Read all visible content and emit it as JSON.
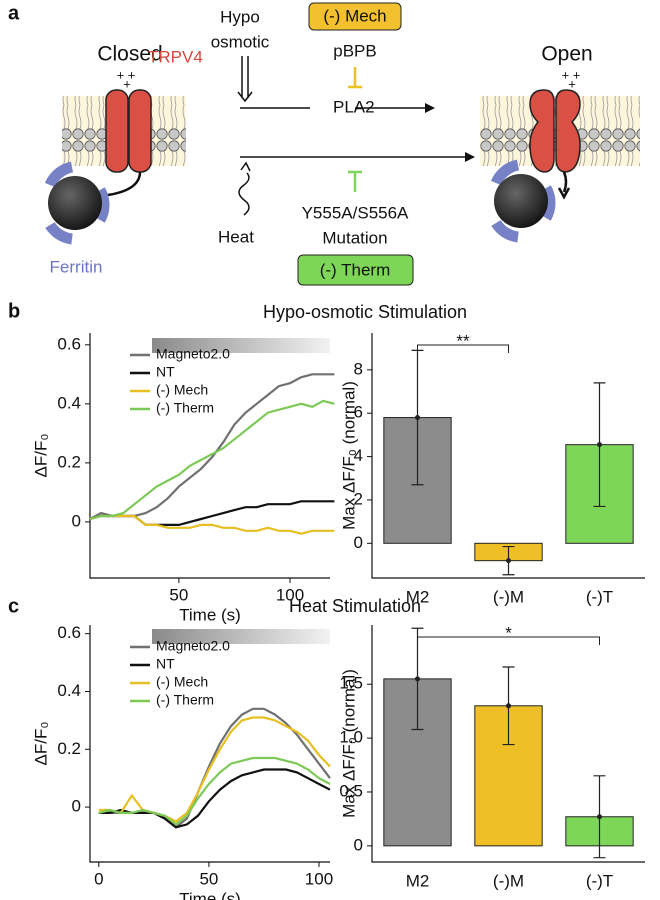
{
  "panel_labels": [
    "a",
    "b",
    "c"
  ],
  "diagram": {
    "closed": "Closed",
    "open": "Open",
    "trpv4": "TRPV4",
    "charge_pair": "+ +",
    "charge_single": "+",
    "ferritin": "Ferritin",
    "hypo_1": "Hypo",
    "hypo_2": "osmotic",
    "mech_box": "(-) Mech",
    "pbpb": "pBPB",
    "pla2": "PLA2",
    "heat": "Heat",
    "mutation_1": "Y555A/S556A",
    "mutation_2": "Mutation",
    "therm_box": "(-) Therm",
    "open_charge_pair": "+ +",
    "open_charge_single": "+"
  },
  "chart_data": [
    {
      "type": "line",
      "title": "Hypo-osmotic Stimulation",
      "x_label": "Time (s)",
      "y_label": "ΔF/F₀",
      "legend": "upper left",
      "x": [
        10,
        15,
        20,
        25,
        30,
        35,
        40,
        45,
        50,
        55,
        60,
        65,
        70,
        75,
        80,
        85,
        90,
        95,
        100,
        105,
        110,
        115,
        120
      ],
      "xlim": [
        10,
        118
      ],
      "xticks": [
        50,
        100
      ],
      "ylim": [
        -0.19,
        0.64
      ],
      "yticks": [
        0,
        0.2,
        0.4,
        0.6
      ],
      "series": [
        {
          "name": "Magneto2.0",
          "color": "#707070",
          "values": [
            0.01,
            0.03,
            0.02,
            0.02,
            0.02,
            0.03,
            0.05,
            0.08,
            0.12,
            0.15,
            0.18,
            0.22,
            0.27,
            0.33,
            0.37,
            0.4,
            0.43,
            0.46,
            0.47,
            0.49,
            0.5,
            0.5,
            0.5
          ]
        },
        {
          "name": "NT",
          "color": "#111111",
          "values": [
            0.01,
            0.02,
            0.02,
            0.02,
            0.02,
            -0.01,
            -0.01,
            -0.01,
            -0.01,
            0,
            0.01,
            0.02,
            0.03,
            0.04,
            0.05,
            0.05,
            0.06,
            0.06,
            0.06,
            0.07,
            0.07,
            0.07,
            0.07
          ]
        },
        {
          "name": "(-) Mech",
          "color": "#e8bf22",
          "values": [
            0.01,
            0.02,
            0.02,
            0.02,
            0.02,
            -0.01,
            -0.01,
            -0.02,
            -0.02,
            -0.02,
            -0.01,
            -0.01,
            -0.02,
            -0.02,
            -0.03,
            -0.03,
            -0.02,
            -0.03,
            -0.03,
            -0.04,
            -0.03,
            -0.03,
            -0.03
          ]
        },
        {
          "name": "(-) Therm",
          "color": "#7cc957",
          "values": [
            0.01,
            0.02,
            0.02,
            0.03,
            0.06,
            0.09,
            0.12,
            0.14,
            0.16,
            0.19,
            0.21,
            0.23,
            0.25,
            0.28,
            0.31,
            0.34,
            0.37,
            0.38,
            0.39,
            0.4,
            0.39,
            0.41,
            0.4
          ]
        }
      ]
    },
    {
      "type": "bar",
      "y_label": "Max ΔF/F₀ (normal)",
      "categories": [
        "M2",
        "(-)M",
        "(-)T"
      ],
      "values": [
        5.8,
        -0.8,
        4.55
      ],
      "errors": [
        3.1,
        0.65,
        2.85
      ],
      "colors": [
        "#8c8c8c",
        "#efc025",
        "#7ed659"
      ],
      "ylim": [
        -1.6,
        9.7
      ],
      "yticks": [
        0,
        2,
        4,
        6,
        8
      ],
      "annotations": [
        {
          "text": "**"
        }
      ]
    },
    {
      "type": "line",
      "title": "Heat Stimulation",
      "x_label": "Time (s)",
      "y_label": "ΔF/F₀",
      "legend": "upper left",
      "x": [
        0,
        5,
        10,
        15,
        20,
        25,
        30,
        35,
        40,
        45,
        50,
        55,
        60,
        65,
        70,
        75,
        80,
        85,
        90,
        95,
        100,
        105
      ],
      "xlim": [
        -4,
        105
      ],
      "xticks": [
        0,
        50,
        100
      ],
      "ylim": [
        -0.19,
        0.63
      ],
      "yticks": [
        0,
        0.2,
        0.4,
        0.6
      ],
      "series": [
        {
          "name": "Magneto2.0",
          "color": "#707070",
          "values": [
            -0.02,
            -0.02,
            -0.02,
            -0.02,
            -0.02,
            -0.02,
            -0.04,
            -0.07,
            -0.04,
            0.05,
            0.14,
            0.22,
            0.28,
            0.32,
            0.34,
            0.34,
            0.32,
            0.29,
            0.25,
            0.2,
            0.15,
            0.1
          ]
        },
        {
          "name": "NT",
          "color": "#111111",
          "values": [
            -0.02,
            -0.02,
            -0.01,
            -0.02,
            -0.02,
            -0.02,
            -0.04,
            -0.07,
            -0.06,
            -0.03,
            0.02,
            0.06,
            0.09,
            0.11,
            0.12,
            0.13,
            0.13,
            0.13,
            0.12,
            0.1,
            0.08,
            0.06
          ]
        },
        {
          "name": "(-) Mech",
          "color": "#e8bf22",
          "values": [
            -0.01,
            -0.01,
            -0.02,
            0.04,
            -0.01,
            -0.02,
            -0.03,
            -0.05,
            -0.02,
            0.05,
            0.13,
            0.2,
            0.26,
            0.3,
            0.31,
            0.31,
            0.3,
            0.28,
            0.26,
            0.23,
            0.18,
            0.14
          ]
        },
        {
          "name": "(-) Therm",
          "color": "#7cc957",
          "values": [
            -0.02,
            -0.01,
            -0.02,
            -0.02,
            -0.01,
            -0.02,
            -0.03,
            -0.06,
            -0.03,
            0.03,
            0.08,
            0.12,
            0.15,
            0.16,
            0.17,
            0.17,
            0.17,
            0.16,
            0.15,
            0.13,
            0.1,
            0.08
          ]
        }
      ]
    },
    {
      "type": "bar",
      "y_label": "Max ΔF/F₀ (normal)",
      "categories": [
        "M2",
        "(-)M",
        "(-)T"
      ],
      "values": [
        1.55,
        1.3,
        0.27
      ],
      "errors": [
        0.47,
        0.36,
        0.38
      ],
      "colors": [
        "#8c8c8c",
        "#efc025",
        "#7ed659"
      ],
      "ylim": [
        -0.15,
        2.05
      ],
      "yticks": [
        0,
        0.5,
        {
          "value": 1,
          "label": "1.0"
        },
        1.5
      ],
      "annotations": [
        {
          "text": "*"
        }
      ]
    }
  ]
}
